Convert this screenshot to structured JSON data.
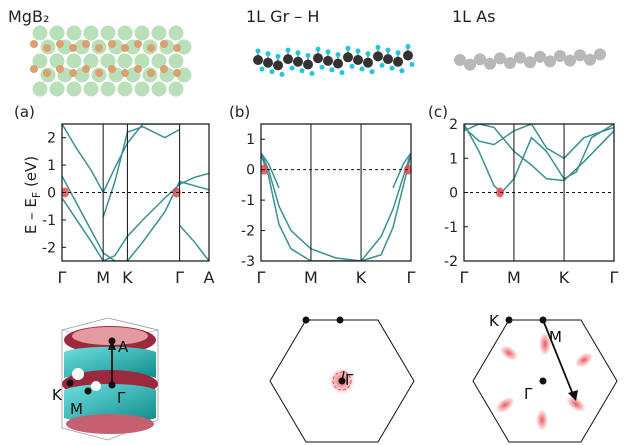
{
  "structures": [
    {
      "title": "MgB₂"
    },
    {
      "title": "1L Gr – H"
    },
    {
      "title": "1L As"
    }
  ],
  "ylabel": "E – E",
  "ylabel_sub": "F",
  "ylabel_unit": " (eV)",
  "colors": {
    "band": "#3a8f95",
    "fermi_pocket": "#e8494f",
    "mg_atom": "#a8d8a8",
    "b_atom": "#d9a070",
    "c_atom": "#333333",
    "h_atom": "#22c6d8",
    "as_atom": "#b8b8b8",
    "fs_cyan": "#1fb5b5",
    "fs_maroon": "#9c2a3e"
  },
  "chart_data": [
    {
      "type": "line",
      "panel": "(a)",
      "material": "MgB2",
      "kpath": [
        "Γ",
        "M",
        "K",
        "Γ",
        "A"
      ],
      "kpath_pos": [
        0,
        0.28,
        0.445,
        0.8,
        1.0
      ],
      "ylim": [
        -2.5,
        2.5
      ],
      "yticks": [
        -2,
        -1,
        0,
        1,
        2
      ],
      "series": [
        {
          "x": [
            0,
            0.1,
            0.2,
            0.28,
            0.36,
            0.445,
            0.55,
            0.7,
            0.8
          ],
          "y": [
            -0.2,
            -1.0,
            -1.8,
            -2.5,
            -2.3,
            -1.6,
            -1.0,
            -0.2,
            0.3
          ]
        },
        {
          "x": [
            0,
            0.1,
            0.2,
            0.28,
            0.36,
            0.445,
            0.55,
            0.7,
            0.8
          ],
          "y": [
            0.6,
            -0.4,
            -1.4,
            -2.2,
            -2.5,
            -2.5,
            -1.8,
            -0.7,
            0.4
          ]
        },
        {
          "x": [
            0,
            0.1,
            0.2,
            0.28,
            0.36,
            0.445,
            0.55,
            0.7,
            0.8
          ],
          "y": [
            2.5,
            1.6,
            0.8,
            0.0,
            0.9,
            1.8,
            2.5,
            2.5,
            2.5
          ]
        },
        {
          "x": [
            0.28,
            0.36,
            0.445,
            0.55,
            0.7,
            0.8
          ],
          "y": [
            -0.9,
            0.4,
            2.2,
            2.4,
            2.0,
            2.3
          ]
        },
        {
          "x": [
            0.8,
            0.9,
            1.0
          ],
          "y": [
            0.3,
            0.55,
            0.7
          ]
        },
        {
          "x": [
            0.8,
            0.9,
            1.0
          ],
          "y": [
            0.4,
            0.25,
            0.1
          ]
        },
        {
          "x": [
            0.8,
            0.9,
            1.0
          ],
          "y": [
            -1.2,
            -1.8,
            -2.5
          ]
        }
      ],
      "pockets": [
        {
          "x": 0.02,
          "y": 0.0
        },
        {
          "x": 0.78,
          "y": 0.0
        }
      ]
    },
    {
      "type": "line",
      "panel": "(b)",
      "material": "1L Gr-H",
      "kpath": [
        "Γ",
        "M",
        "K",
        "Γ"
      ],
      "kpath_pos": [
        0,
        0.333,
        0.667,
        1.0
      ],
      "ylim": [
        -3,
        1.5
      ],
      "yticks": [
        -3,
        -2,
        -1,
        0,
        1
      ],
      "series": [
        {
          "x": [
            0,
            0.05,
            0.12,
            0.2,
            0.333,
            0.5,
            0.667,
            0.8,
            0.88,
            0.95,
            1.0
          ],
          "y": [
            0.55,
            0.0,
            -1.2,
            -2.0,
            -2.6,
            -2.9,
            -3.0,
            -2.2,
            -1.3,
            -0.2,
            0.55
          ]
        },
        {
          "x": [
            0,
            0.05,
            0.12,
            0.2,
            0.333,
            0.5,
            0.667,
            0.8,
            0.88,
            0.95,
            1.0
          ],
          "y": [
            0.5,
            -0.2,
            -1.8,
            -2.6,
            -3.0,
            -3.0,
            -3.0,
            -2.8,
            -1.9,
            -0.5,
            0.5
          ]
        },
        {
          "x": [
            0,
            0.05,
            0.12
          ],
          "y": [
            0.55,
            0.2,
            -0.6
          ]
        },
        {
          "x": [
            0.88,
            0.95,
            1.0
          ],
          "y": [
            -0.6,
            0.2,
            0.55
          ]
        }
      ],
      "pockets": [
        {
          "x": 0.02,
          "y": 0.0
        },
        {
          "x": 0.98,
          "y": 0.0
        }
      ]
    },
    {
      "type": "line",
      "panel": "(c)",
      "material": "1L As",
      "kpath": [
        "Γ",
        "M",
        "K",
        "Γ"
      ],
      "kpath_pos": [
        0,
        0.333,
        0.667,
        1.0
      ],
      "ylim": [
        -2,
        2
      ],
      "yticks": [
        -2,
        -1,
        0,
        1,
        2
      ],
      "series": [
        {
          "x": [
            0,
            0.1,
            0.2,
            0.25,
            0.333,
            0.45,
            0.55,
            0.667,
            0.75,
            0.85,
            1.0
          ],
          "y": [
            2.0,
            1.2,
            0.2,
            0.0,
            0.4,
            1.6,
            1.2,
            0.4,
            0.6,
            1.6,
            2.0
          ]
        },
        {
          "x": [
            0,
            0.1,
            0.2,
            0.333,
            0.45,
            0.55,
            0.667,
            0.8,
            1.0
          ],
          "y": [
            1.9,
            1.5,
            1.4,
            1.8,
            2.0,
            1.3,
            1.0,
            1.6,
            1.9
          ]
        },
        {
          "x": [
            0,
            0.1,
            0.2,
            0.333,
            0.45,
            0.55,
            0.667,
            0.8,
            1.0
          ],
          "y": [
            1.8,
            2.0,
            1.9,
            1.2,
            0.8,
            0.4,
            0.35,
            0.9,
            1.8
          ]
        }
      ],
      "pockets": [
        {
          "x": 0.24,
          "y": 0.0
        }
      ]
    }
  ],
  "fermi_surfaces": [
    {
      "labels": [
        "A",
        "Γ",
        "K",
        "M"
      ]
    },
    {
      "labels": [
        "Γ"
      ]
    },
    {
      "labels": [
        "K",
        "M",
        "Γ"
      ]
    }
  ]
}
